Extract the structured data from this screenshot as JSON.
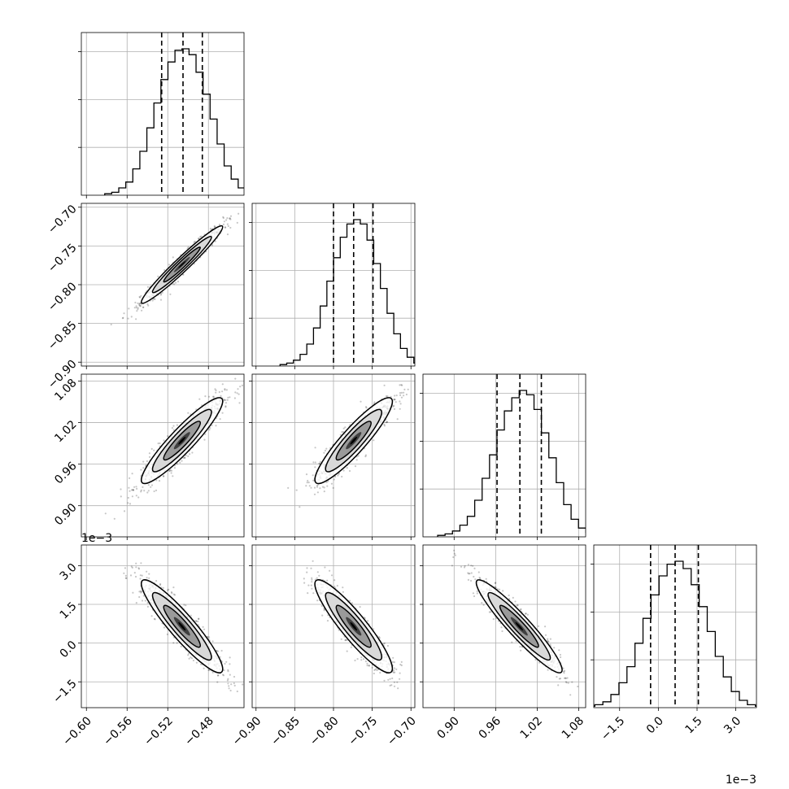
{
  "chart_data": {
    "type": "corner",
    "grid": true,
    "quantile_lines": "dashed",
    "parameters": [
      {
        "range": [
          -0.605,
          -0.445
        ],
        "ticks": [
          -0.6,
          -0.56,
          -0.52,
          -0.48
        ],
        "tick_labels": [
          "−0.60",
          "−0.56",
          "−0.52",
          "−0.48"
        ],
        "offset": "",
        "mean": -0.506,
        "sd": 0.02,
        "quantiles": [
          -0.526,
          -0.505,
          -0.486
        ]
      },
      {
        "range": [
          -0.905,
          -0.695
        ],
        "ticks": [
          -0.9,
          -0.85,
          -0.8,
          -0.75,
          -0.7
        ],
        "tick_labels": [
          "−0.90",
          "−0.85",
          "−0.80",
          "−0.75",
          "−0.70"
        ],
        "offset": "",
        "mean": -0.774,
        "sd": 0.025,
        "quantiles": [
          -0.8,
          -0.774,
          -0.749
        ]
      },
      {
        "range": [
          0.855,
          1.09
        ],
        "ticks": [
          0.9,
          0.96,
          1.02,
          1.08
        ],
        "tick_labels": [
          "0.90",
          "0.96",
          "1.02",
          "1.08"
        ],
        "offset": "",
        "mean": 0.994,
        "sd": 0.031,
        "quantiles": [
          0.962,
          0.995,
          1.026
        ]
      },
      {
        "range": [
          -2.5,
          3.8
        ],
        "ticks": [
          -1.5,
          0.0,
          1.5,
          3.0
        ],
        "tick_labels": [
          "−1.5",
          "0.0",
          "1.5",
          "3.0"
        ],
        "offset": "1e−3",
        "mean": 0.65,
        "sd": 0.9,
        "quantiles": [
          -0.3,
          0.65,
          1.55
        ]
      }
    ],
    "histograms": [
      [
        0.01,
        0.02,
        0.05,
        0.09,
        0.18,
        0.3,
        0.46,
        0.63,
        0.79,
        0.91,
        0.99,
        1.0,
        0.96,
        0.84,
        0.69,
        0.52,
        0.35,
        0.2,
        0.11,
        0.05,
        0.02,
        0.01
      ],
      [
        0.01,
        0.02,
        0.04,
        0.08,
        0.15,
        0.26,
        0.41,
        0.58,
        0.74,
        0.88,
        0.97,
        1.0,
        0.97,
        0.86,
        0.7,
        0.53,
        0.36,
        0.22,
        0.12,
        0.06,
        0.02,
        0.01
      ],
      [
        0.01,
        0.02,
        0.04,
        0.08,
        0.14,
        0.25,
        0.4,
        0.56,
        0.73,
        0.86,
        0.95,
        1.0,
        0.97,
        0.87,
        0.71,
        0.54,
        0.37,
        0.22,
        0.12,
        0.06,
        0.03,
        0.01
      ],
      [
        0.01,
        0.02,
        0.04,
        0.09,
        0.17,
        0.28,
        0.44,
        0.61,
        0.77,
        0.9,
        0.98,
        1.0,
        0.95,
        0.84,
        0.69,
        0.52,
        0.35,
        0.21,
        0.11,
        0.05,
        0.02,
        0.01
      ]
    ],
    "correlations": [
      [
        1,
        0.97,
        0.92,
        -0.92
      ],
      [
        0.97,
        1,
        0.91,
        -0.91
      ],
      [
        0.92,
        0.91,
        1,
        -0.94
      ],
      [
        -0.92,
        -0.91,
        -0.94,
        1
      ]
    ]
  }
}
